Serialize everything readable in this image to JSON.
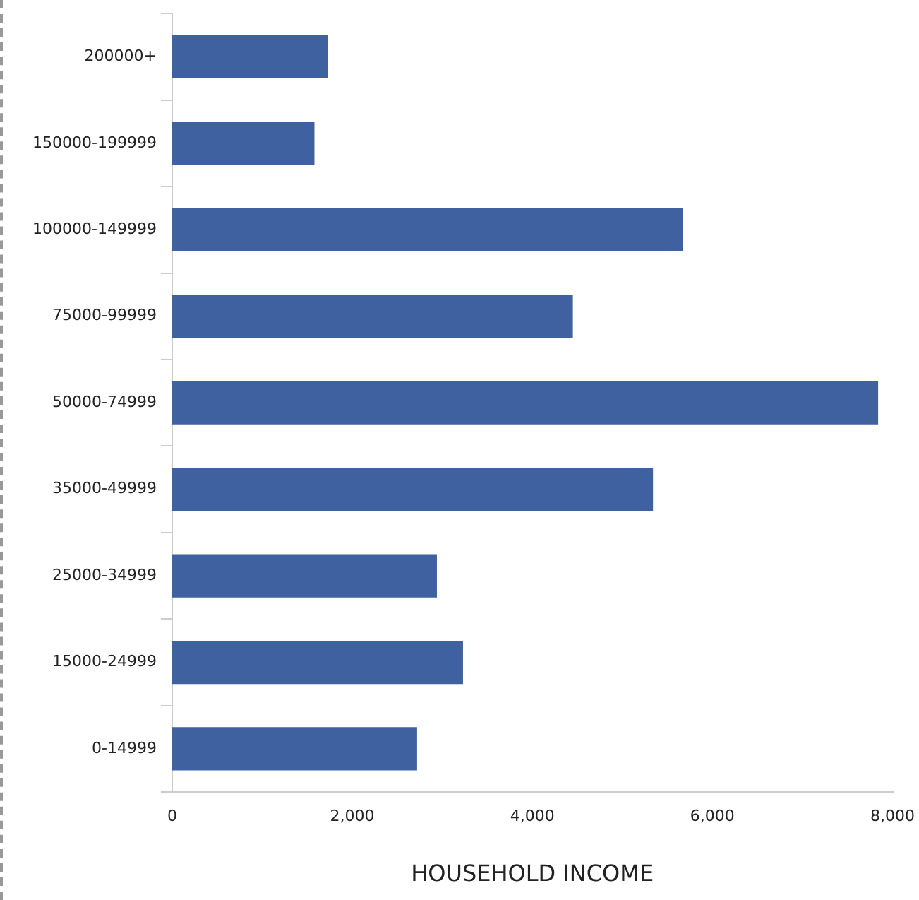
{
  "chart_data": {
    "type": "bar",
    "orientation": "horizontal",
    "xlabel": "HOUSEHOLD INCOME",
    "categories": [
      "200000+",
      "150000-199999",
      "100000-149999",
      "75000-99999",
      "50000-74999",
      "35000-49999",
      "25000-34999",
      "15000-24999",
      "0-14999"
    ],
    "values": [
      1730,
      1580,
      5670,
      4450,
      7840,
      5340,
      2940,
      3230,
      2720
    ],
    "color": "#3f61a0",
    "xlim": [
      0,
      8000
    ],
    "xticks": [
      0,
      {
        "value": 2000,
        "label": "2,000"
      },
      {
        "value": 4000,
        "label": "4,000"
      },
      {
        "value": 6000,
        "label": "6,000"
      },
      {
        "value": 8000,
        "label": "8,000"
      }
    ],
    "grid": false,
    "legend": false
  }
}
